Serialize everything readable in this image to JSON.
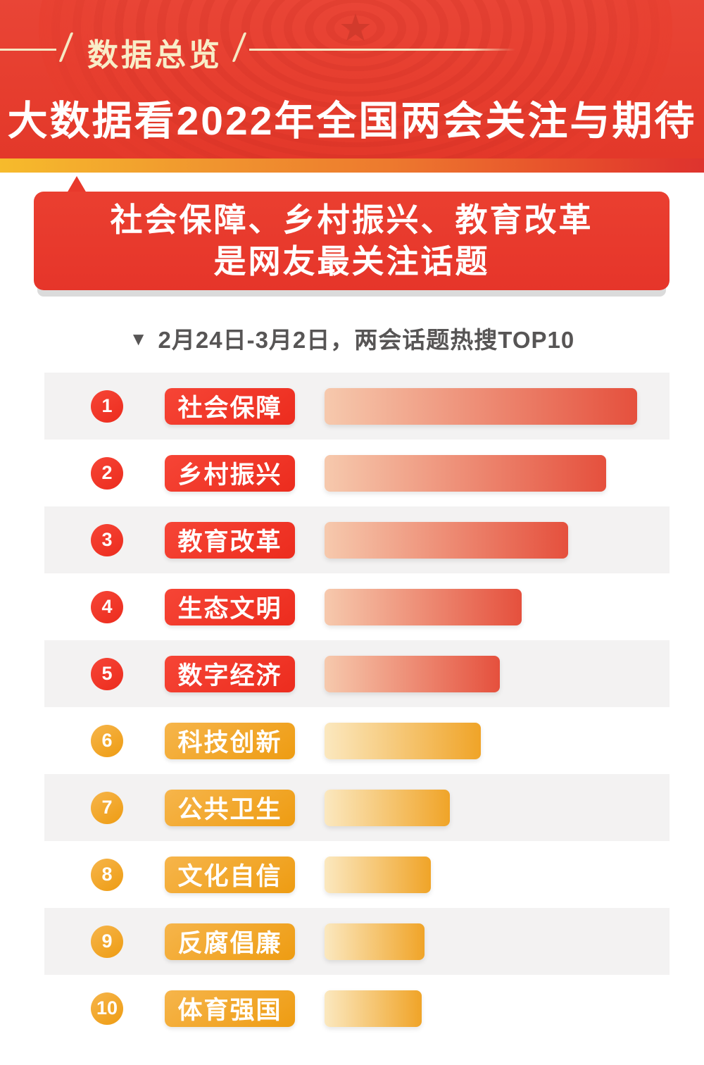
{
  "header": {
    "badge": "数据总览",
    "title": "大数据看2022年全国两会关注与期待"
  },
  "callout": {
    "line1": "社会保障、乡村振兴、教育改革",
    "line2": "是网友最关注话题"
  },
  "subtitle": {
    "marker": "▼",
    "text": "2月24日-3月2日，两会话题热搜TOP10"
  },
  "ranking": {
    "items": [
      {
        "rank": "1",
        "label": "社会保障",
        "value": 100,
        "theme": "red"
      },
      {
        "rank": "2",
        "label": "乡村振兴",
        "value": 90,
        "theme": "red"
      },
      {
        "rank": "3",
        "label": "教育改革",
        "value": 78,
        "theme": "red"
      },
      {
        "rank": "4",
        "label": "生态文明",
        "value": 63,
        "theme": "red"
      },
      {
        "rank": "5",
        "label": "数字经济",
        "value": 56,
        "theme": "red"
      },
      {
        "rank": "6",
        "label": "科技创新",
        "value": 50,
        "theme": "gold"
      },
      {
        "rank": "7",
        "label": "公共卫生",
        "value": 40,
        "theme": "gold"
      },
      {
        "rank": "8",
        "label": "文化自信",
        "value": 34,
        "theme": "gold"
      },
      {
        "rank": "9",
        "label": "反腐倡廉",
        "value": 32,
        "theme": "gold"
      },
      {
        "rank": "10",
        "label": "体育强国",
        "value": 31,
        "theme": "gold"
      }
    ]
  },
  "chart_data": {
    "type": "bar",
    "orientation": "horizontal",
    "title": "2月24日-3月2日，两会话题热搜TOP10",
    "categories": [
      "社会保障",
      "乡村振兴",
      "教育改革",
      "生态文明",
      "数字经济",
      "科技创新",
      "公共卫生",
      "文化自信",
      "反腐倡廉",
      "体育强国"
    ],
    "values": [
      100,
      90,
      78,
      63,
      56,
      50,
      40,
      34,
      32,
      31
    ],
    "value_note": "relative bar lengths estimated from pixels, max = 100; no numeric labels shown in image",
    "legend": "ranks 1-5 red gradient bars, ranks 6-10 gold gradient bars",
    "grid": false
  },
  "colors": {
    "header_red": "#e63d2e",
    "badge_cream": "#f8edc8",
    "strip_gradient_left": "#f6bb2c",
    "strip_gradient_right": "#de342e",
    "callout_red": "#e8392c",
    "callout_shadow": "#dbdbdb",
    "subtitle_gray": "#575555",
    "row_stripe_gray": "#f3f2f2",
    "red_accent": "#ec2c1e",
    "red_bar_start": "#f6c9ad",
    "red_bar_end": "#e5503d",
    "gold_accent": "#ee9c12",
    "gold_bar_start": "#fbe8bf",
    "gold_bar_end": "#f0a428",
    "star_red": "#d23a2c"
  }
}
